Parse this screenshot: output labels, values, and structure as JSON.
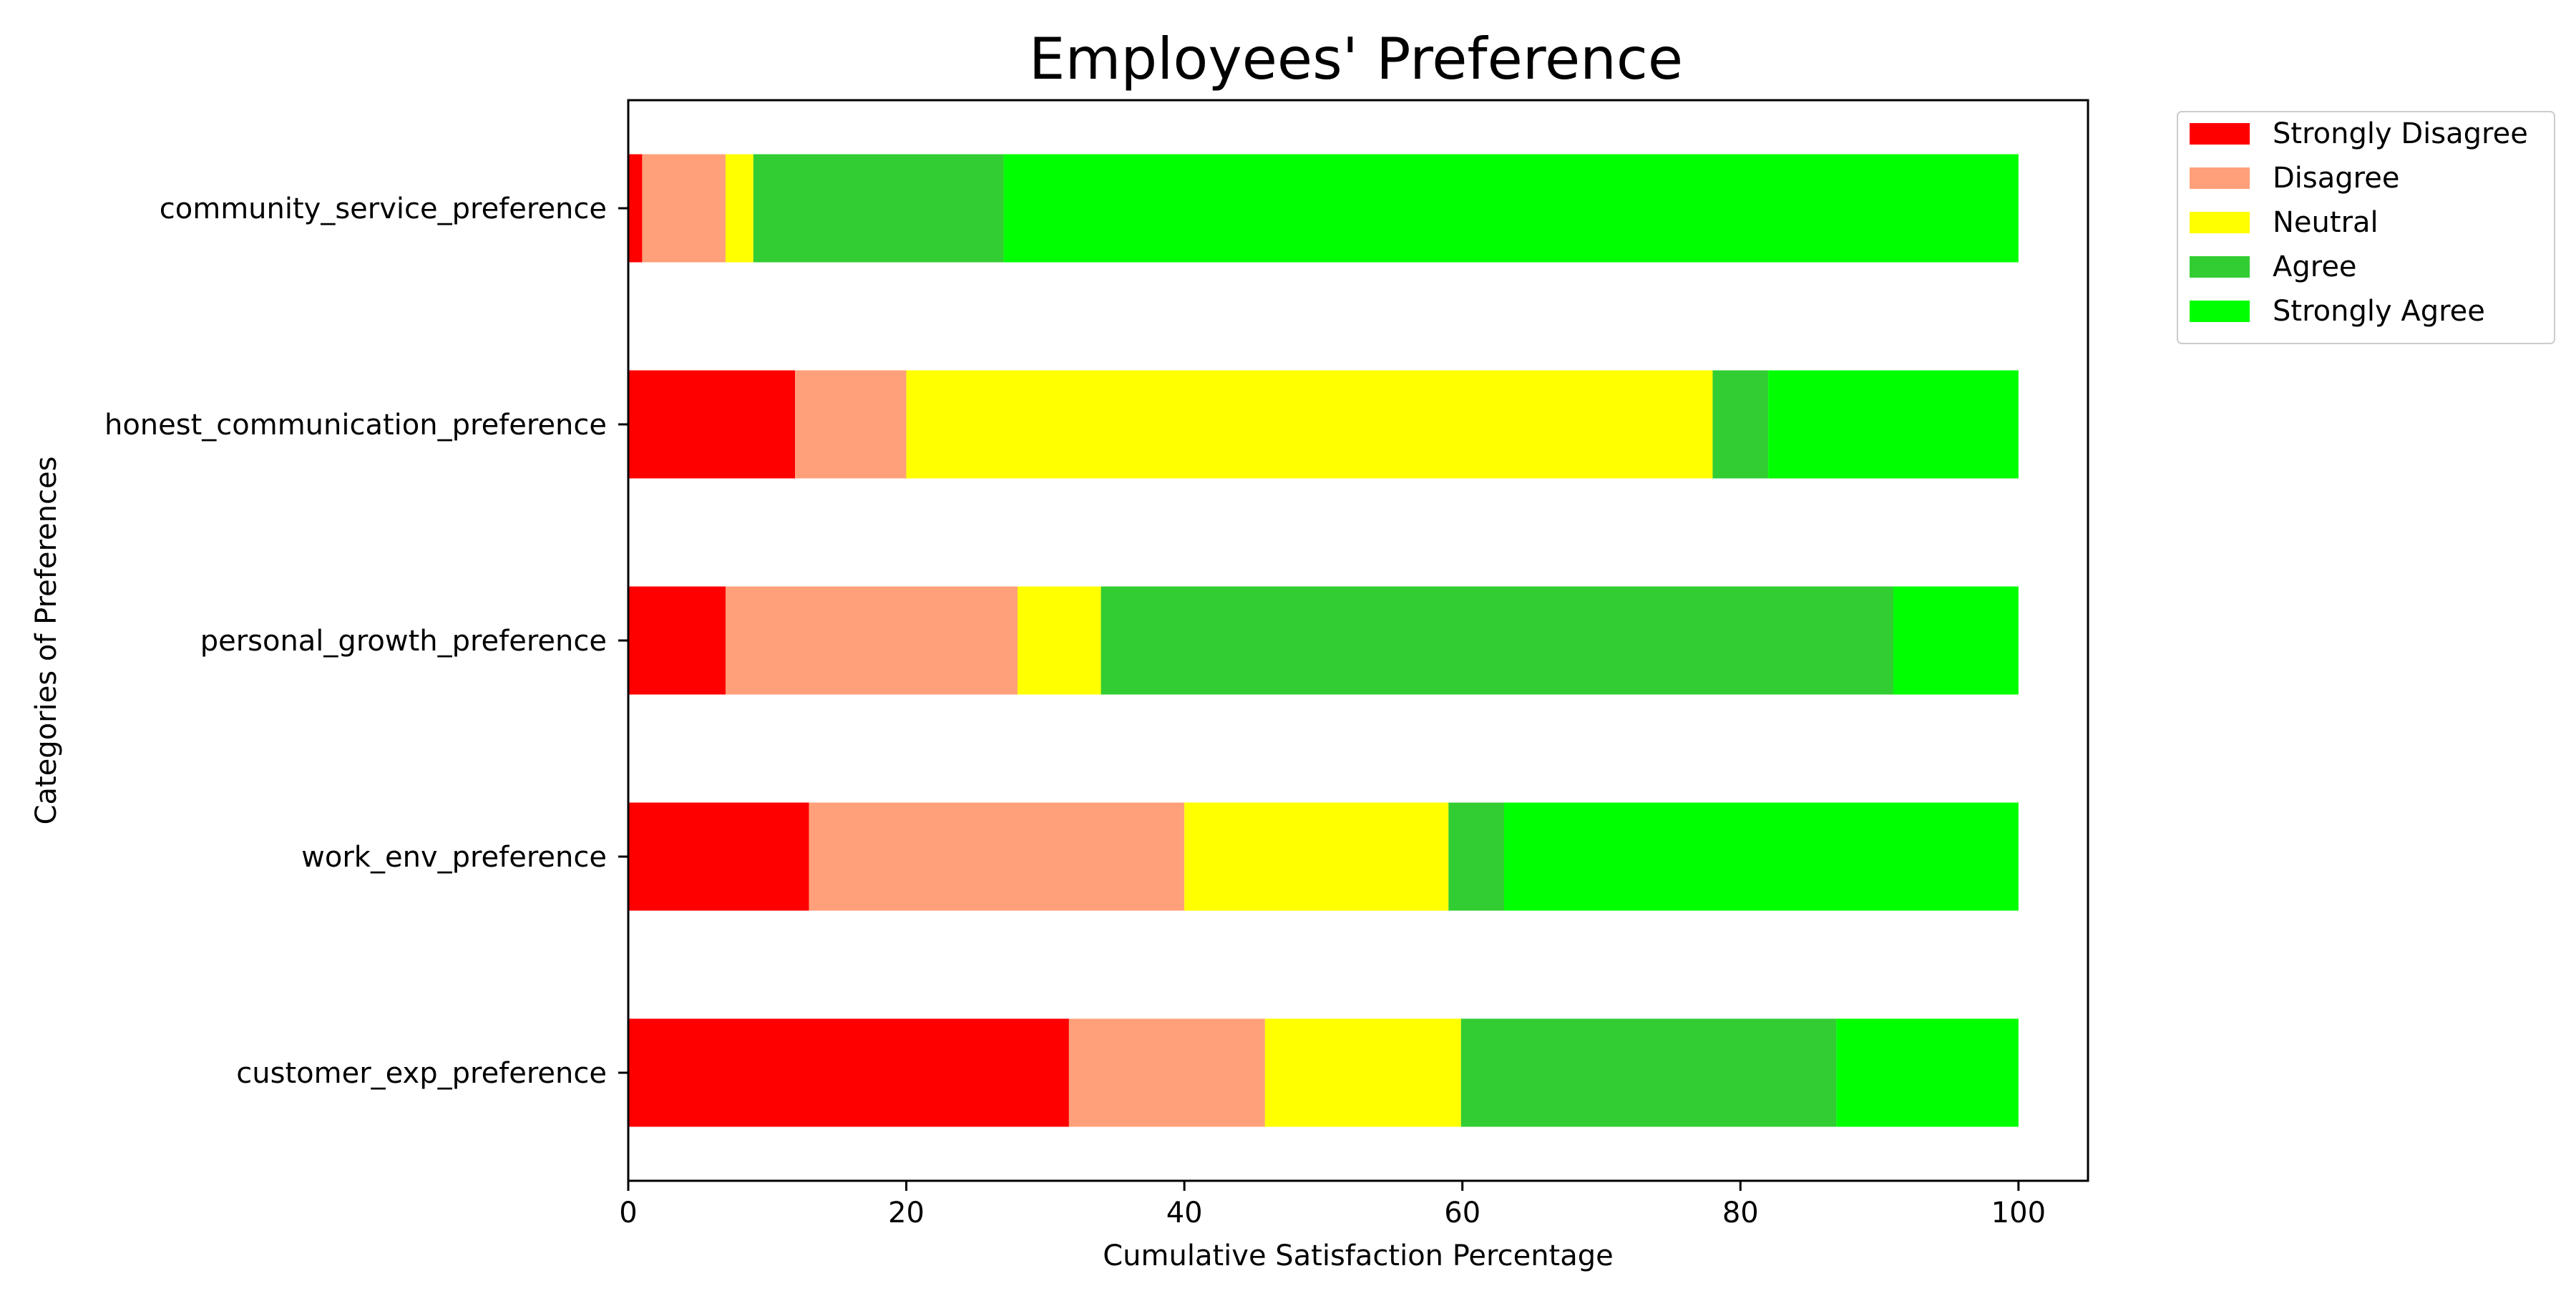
{
  "chart_data": {
    "type": "bar",
    "orientation": "horizontal",
    "stacked": true,
    "title": "Employees' Preference",
    "xlabel": "Cumulative Satisfaction Percentage",
    "ylabel": "Categories of Preferences",
    "xlim": [
      0,
      105
    ],
    "xticks": [
      0,
      20,
      40,
      60,
      80,
      100
    ],
    "grid": false,
    "legend_position": "outside-top-right",
    "categories": [
      "customer_exp_preference",
      "work_env_preference",
      "personal_growth_preference",
      "honest_communication_preference",
      "community_service_preference"
    ],
    "series": [
      {
        "name": "Strongly Disagree",
        "color": "#ff0000",
        "values": [
          31.7,
          13,
          7,
          12,
          1
        ]
      },
      {
        "name": "Disagree",
        "color": "#ffa07a",
        "values": [
          14.1,
          27,
          21,
          8,
          6
        ]
      },
      {
        "name": "Neutral",
        "color": "#ffff00",
        "values": [
          14.1,
          19,
          6,
          58,
          2
        ]
      },
      {
        "name": "Agree",
        "color": "#32cd32",
        "values": [
          27.0,
          4,
          57,
          4,
          18
        ]
      },
      {
        "name": "Strongly Agree",
        "color": "#00ff00",
        "values": [
          13.1,
          37,
          9,
          18,
          73
        ]
      }
    ]
  }
}
